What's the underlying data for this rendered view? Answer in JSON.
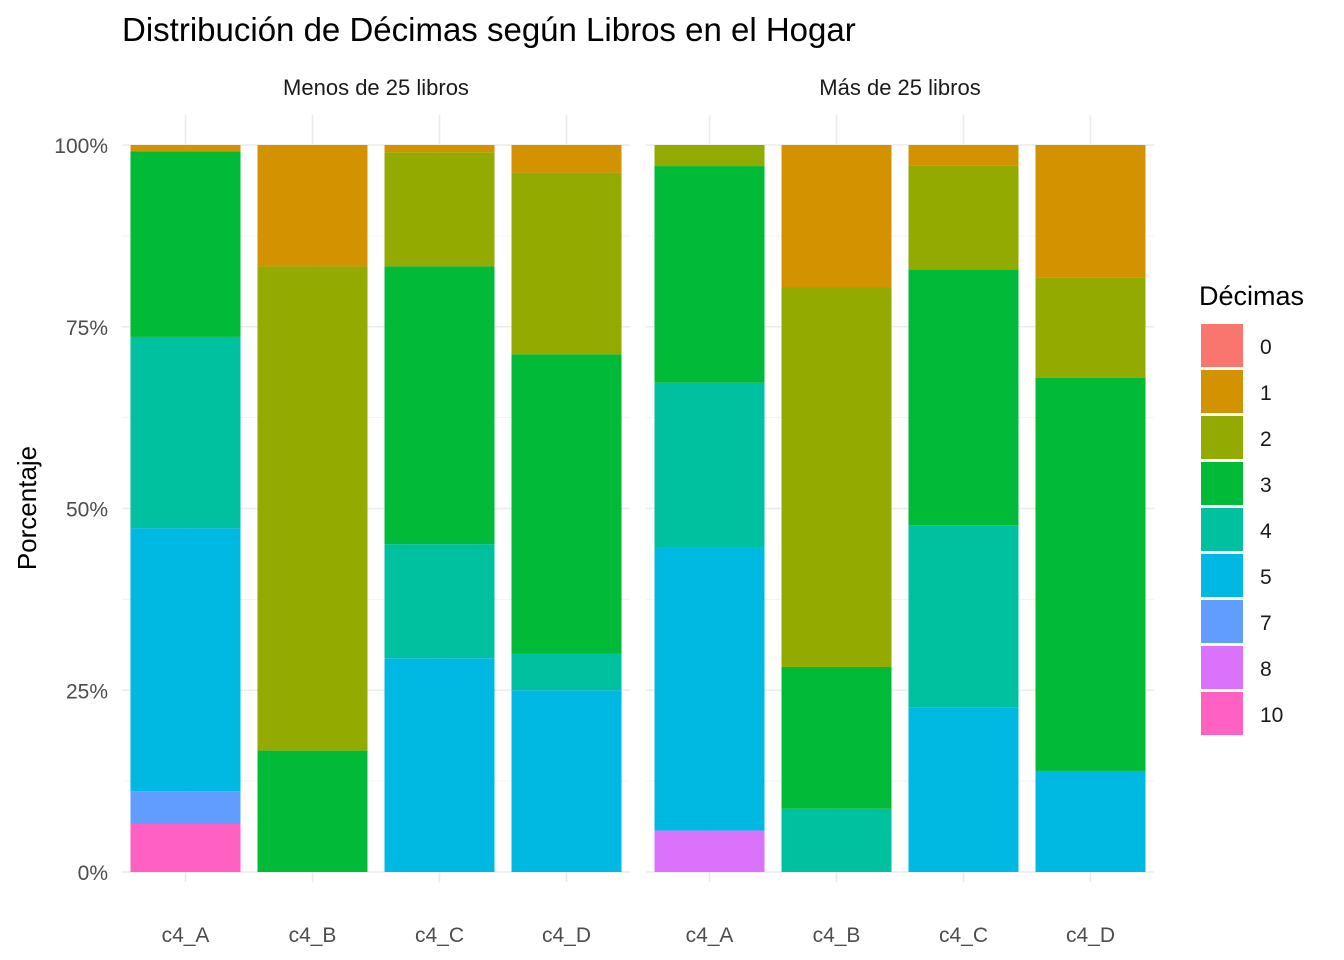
{
  "chart_data": {
    "type": "bar",
    "stacked": "percent",
    "title": "Distribución de Décimas según Libros en el Hogar",
    "xlabel": "",
    "ylabel": "Porcentaje",
    "ylim": [
      0,
      1
    ],
    "y_ticks": [
      "0%",
      "25%",
      "50%",
      "75%",
      "100%"
    ],
    "grid": true,
    "legend": {
      "title": "Décimas",
      "position": "right",
      "keys": [
        "0",
        "1",
        "2",
        "3",
        "4",
        "5",
        "7",
        "8",
        "10"
      ],
      "colors": [
        "#F8766D",
        "#D39200",
        "#93AA00",
        "#00BA38",
        "#00C19F",
        "#00B9E3",
        "#619CFF",
        "#DB72FB",
        "#FF61C3"
      ]
    },
    "categories": [
      "c4_A",
      "c4_B",
      "c4_C",
      "c4_D"
    ],
    "panels": [
      {
        "name": "Menos de 25 libros",
        "bars": [
          {
            "x": "c4_A",
            "segments": {
              "10": 0.066,
              "7": 0.045,
              "5": 0.362,
              "4": 0.263,
              "3": 0.255,
              "1": 0.009
            }
          },
          {
            "x": "c4_B",
            "segments": {
              "3": 0.167,
              "2": 0.666,
              "1": 0.167
            }
          },
          {
            "x": "c4_C",
            "segments": {
              "5": 0.294,
              "4": 0.157,
              "3": 0.382,
              "2": 0.157,
              "1": 0.01
            }
          },
          {
            "x": "c4_D",
            "segments": {
              "5": 0.25,
              "4": 0.05,
              "3": 0.412,
              "2": 0.25,
              "1": 0.038
            }
          }
        ]
      },
      {
        "name": "Más de 25 libros",
        "bars": [
          {
            "x": "c4_A",
            "segments": {
              "8": 0.057,
              "5": 0.39,
              "4": 0.226,
              "3": 0.298,
              "2": 0.029
            }
          },
          {
            "x": "c4_B",
            "segments": {
              "4": 0.087,
              "3": 0.195,
              "2": 0.522,
              "1": 0.196
            }
          },
          {
            "x": "c4_C",
            "segments": {
              "5": 0.226,
              "4": 0.251,
              "3": 0.352,
              "2": 0.143,
              "1": 0.028
            }
          },
          {
            "x": "c4_D",
            "segments": {
              "5": 0.139,
              "3": 0.541,
              "2": 0.138,
              "1": 0.182
            }
          }
        ]
      }
    ]
  }
}
